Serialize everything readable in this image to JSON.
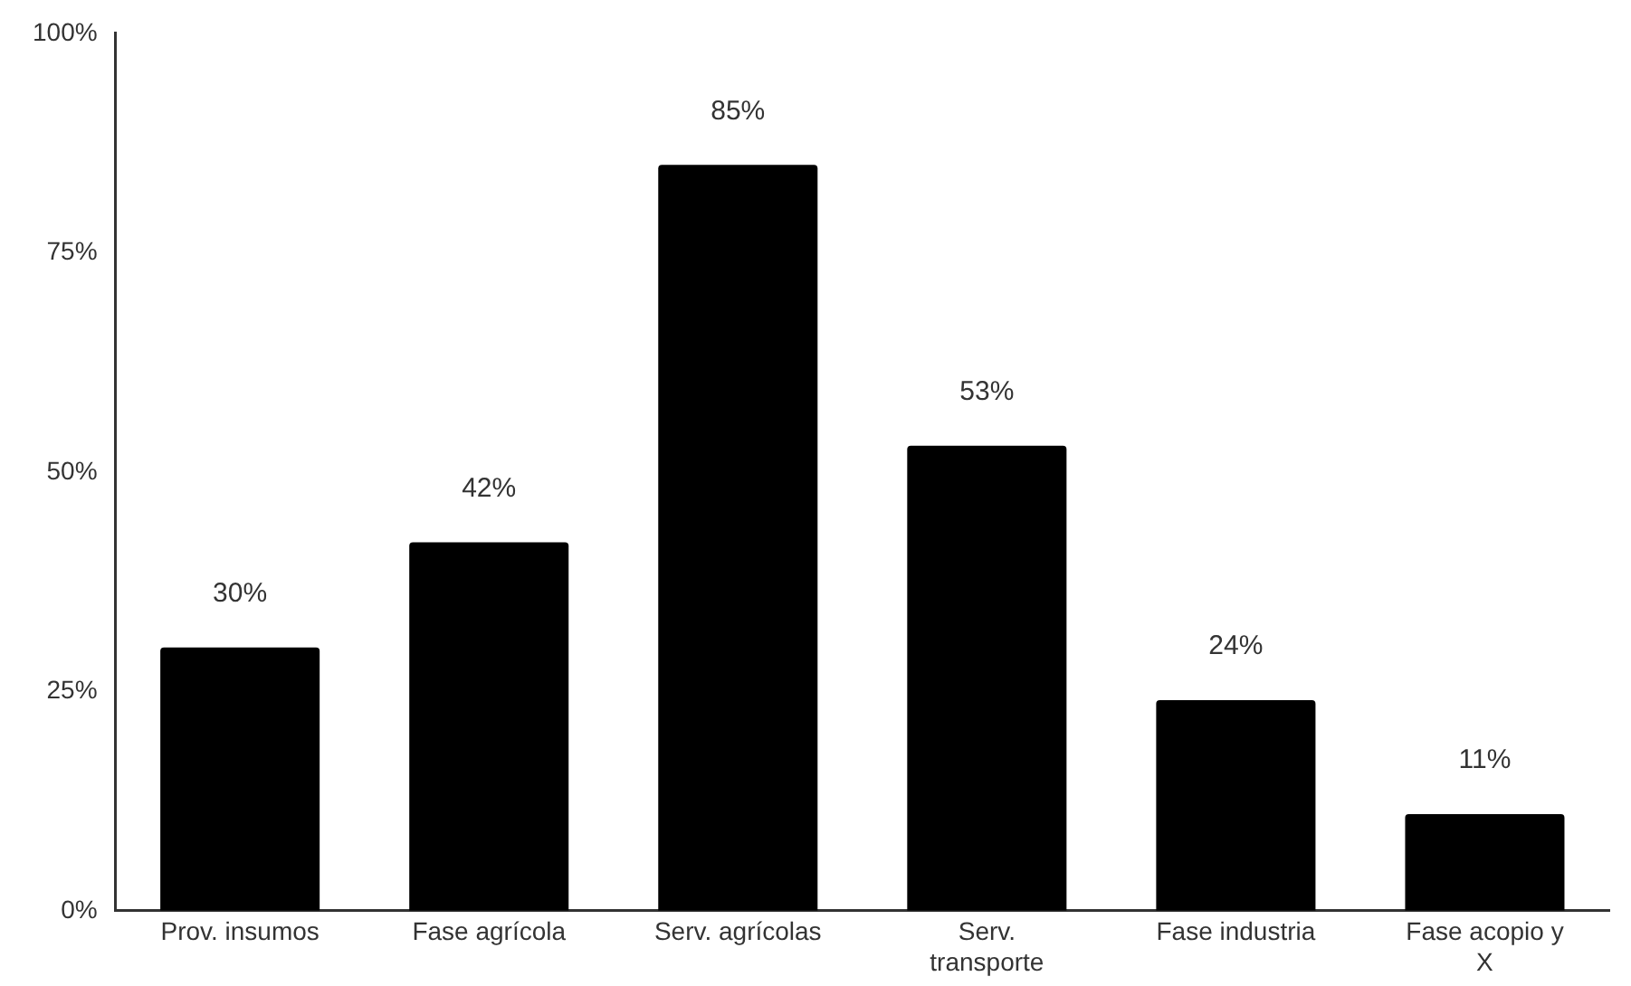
{
  "chart_data": {
    "type": "bar",
    "categories": [
      "Prov. insumos",
      "Fase agrícola",
      "Serv. agrícolas",
      "Serv. transporte",
      "Fase industria",
      "Fase acopio y X"
    ],
    "values": [
      30,
      42,
      85,
      53,
      24,
      11
    ],
    "color": "#000000",
    "value_labels": [
      "30%",
      "42%",
      "85%",
      "53%",
      "24%",
      "11%"
    ],
    "ylim": [
      0,
      100
    ],
    "yticks": [
      {
        "value": 0,
        "label": "0%"
      },
      {
        "value": 25,
        "label": "25%"
      },
      {
        "value": 50,
        "label": "50%"
      },
      {
        "value": 75,
        "label": "75%"
      },
      {
        "value": 100,
        "label": "100%"
      }
    ],
    "grid": false,
    "legend": false
  }
}
